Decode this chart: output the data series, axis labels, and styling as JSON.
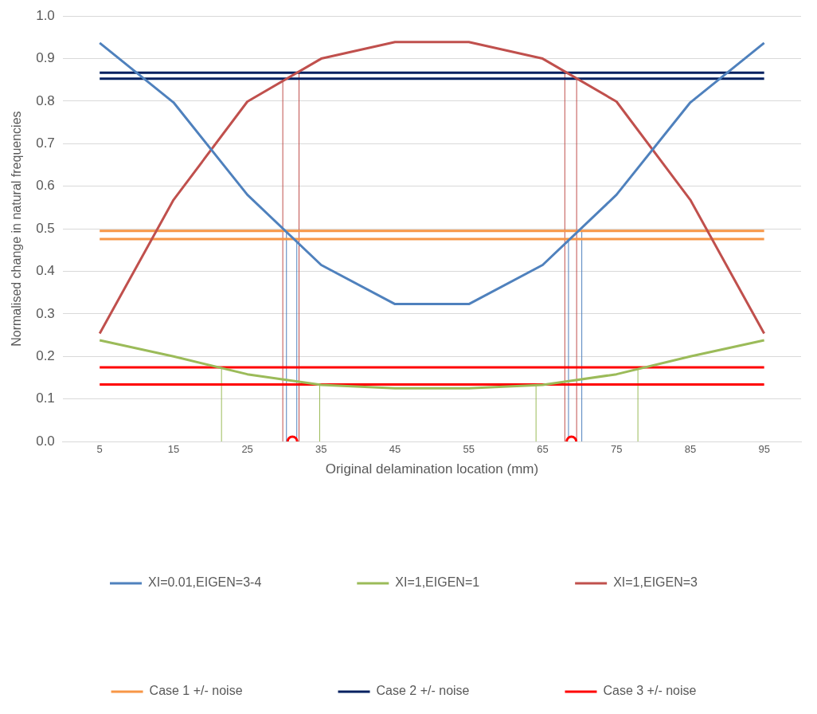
{
  "chart_data": {
    "type": "line",
    "xlabel": "Original delamination location (mm)",
    "ylabel": "Normalised change in natural frequencies",
    "xlim": [
      0,
      100
    ],
    "xticks": [
      5,
      15,
      25,
      35,
      45,
      55,
      65,
      75,
      85,
      95
    ],
    "ylim": [
      0,
      1
    ],
    "yticks": [
      {
        "value": 0,
        "label": "0.0"
      },
      {
        "value": 0.1,
        "label": "0.1"
      },
      {
        "value": 0.2,
        "label": "0.2"
      },
      {
        "value": 0.3,
        "label": "0.3"
      },
      {
        "value": 0.4,
        "label": "0.4"
      },
      {
        "value": 0.5,
        "label": "0.5"
      },
      {
        "value": 0.6,
        "label": "0.6"
      },
      {
        "value": 0.7,
        "label": "0.7"
      },
      {
        "value": 0.8,
        "label": "0.8"
      },
      {
        "value": 0.9,
        "label": "0.9"
      },
      {
        "value": 1,
        "label": "1.0"
      }
    ],
    "grid": "y",
    "legend": "bottom",
    "marker": "none",
    "line_style": "solid",
    "x": [
      5,
      15,
      25,
      35,
      45,
      55,
      65,
      75,
      85,
      95
    ],
    "series": [
      {
        "name": "XI=0.01,EIGEN=3-4",
        "color": "#4f81bd",
        "values": [
          0.937,
          0.797,
          0.58,
          0.415,
          0.323,
          0.323,
          0.415,
          0.58,
          0.797,
          0.937
        ]
      },
      {
        "name": "XI=1,EIGEN=1",
        "color": "#9bbb59",
        "values": [
          0.238,
          0.2,
          0.158,
          0.133,
          0.125,
          0.125,
          0.133,
          0.158,
          0.2,
          0.238
        ]
      },
      {
        "name": "XI=1,EIGEN=3",
        "color": "#c0504d",
        "values": [
          0.254,
          0.568,
          0.799,
          0.9,
          0.939,
          0.939,
          0.9,
          0.799,
          0.568,
          0.254
        ]
      },
      {
        "name": "Case 1 +/- noise",
        "color": "#f79646",
        "x": [
          5,
          95
        ],
        "values": [
          0.495,
          0.495
        ]
      },
      {
        "color": "#f79646",
        "x": [
          5,
          95
        ],
        "values": [
          0.476,
          0.476
        ]
      },
      {
        "name": "Case 2 +/- noise",
        "color": "#002060",
        "x": [
          5,
          95
        ],
        "values": [
          0.867,
          0.867
        ]
      },
      {
        "color": "#002060",
        "x": [
          5,
          95
        ],
        "values": [
          0.853,
          0.853
        ]
      },
      {
        "name": "Case 3 +/- noise",
        "color": "#ff0000",
        "x": [
          5,
          95
        ],
        "values": [
          0.174,
          0.174
        ]
      },
      {
        "color": "#ff0000",
        "x": [
          5,
          95
        ],
        "values": [
          0.134,
          0.134
        ]
      },
      {
        "color": "#9bbb59",
        "x": [
          21.5,
          21.5
        ],
        "values": [
          0,
          0.174
        ]
      },
      {
        "color": "#9bbb59",
        "x": [
          34.8,
          34.8
        ],
        "values": [
          0,
          0.134
        ]
      },
      {
        "color": "#9bbb59",
        "x": [
          64.1,
          64.1
        ],
        "values": [
          0,
          0.134
        ]
      },
      {
        "color": "#9bbb59",
        "x": [
          77.9,
          77.9
        ],
        "values": [
          0,
          0.174
        ]
      },
      {
        "color": "#4f81bd",
        "x": [
          30.3,
          30.3
        ],
        "values": [
          0,
          0.495
        ]
      },
      {
        "color": "#4f81bd",
        "x": [
          31.7,
          31.7
        ],
        "values": [
          0,
          0.476
        ]
      },
      {
        "color": "#4f81bd",
        "x": [
          68.5,
          68.5
        ],
        "values": [
          0,
          0.476
        ]
      },
      {
        "color": "#4f81bd",
        "x": [
          70.3,
          70.3
        ],
        "values": [
          0,
          0.495
        ]
      },
      {
        "color": "#c0504d",
        "x": [
          29.8,
          29.8
        ],
        "values": [
          0,
          0.853
        ]
      },
      {
        "color": "#c0504d",
        "x": [
          32,
          32
        ],
        "values": [
          0,
          0.867
        ]
      },
      {
        "color": "#c0504d",
        "x": [
          68,
          68
        ],
        "values": [
          0,
          0.867
        ]
      },
      {
        "color": "#c0504d",
        "x": [
          69.6,
          69.6
        ],
        "values": [
          0,
          0.853
        ]
      },
      {
        "type": "scatter",
        "marker": "circle",
        "color": "#ff0000",
        "x": [
          31.1,
          68.9
        ],
        "values": [
          0,
          0
        ]
      }
    ]
  }
}
